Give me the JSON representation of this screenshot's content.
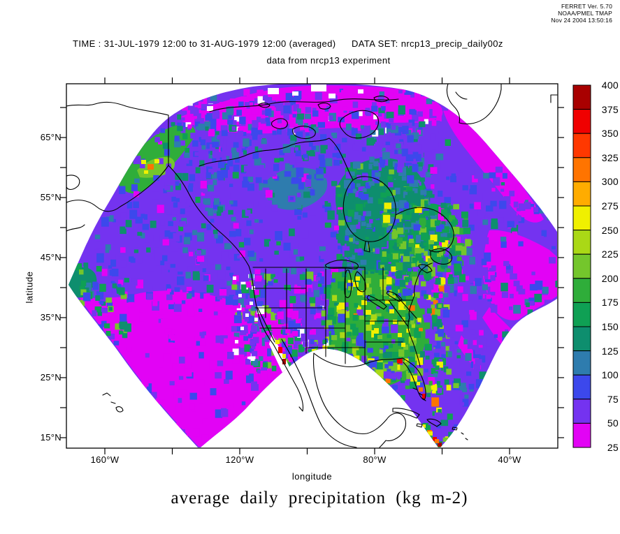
{
  "credit": {
    "line1": "FERRET Ver. 5.70",
    "line2": "NOAA/PMEL TMAP",
    "line3": "Nov 24 2004 13:50:16"
  },
  "titles": {
    "time_label": "TIME : 31-JUL-1979 12:00 to 31-AUG-1979 12:00 (averaged)",
    "dataset_label": "DATA SET: nrcp13_precip_daily00z",
    "subtitle": "data from nrcp13 experiment",
    "main_title": "average daily precipitation (kg m-2)"
  },
  "axes": {
    "x": {
      "label": "longitude",
      "tick_labels": [
        "160°W",
        "120°W",
        "80°W",
        "40°W"
      ],
      "all_ticks": [
        "160°W",
        "140°W",
        "120°W",
        "100°W",
        "80°W",
        "60°W",
        "40°W"
      ]
    },
    "y": {
      "label": "latitude",
      "tick_labels": [
        "65°N",
        "55°N",
        "45°N",
        "35°N",
        "25°N",
        "15°N"
      ],
      "minor_ticks_every_deg": 5
    }
  },
  "colorbar": {
    "labels": [
      "400",
      "375",
      "350",
      "325",
      "300",
      "275",
      "250",
      "225",
      "200",
      "175",
      "150",
      "125",
      "100",
      "75",
      "50",
      "25"
    ],
    "colors": [
      "#A80000",
      "#F00000",
      "#FF3800",
      "#FF7400",
      "#FFAC00",
      "#F0F000",
      "#AAD816",
      "#74C62C",
      "#2FAD3A",
      "#0FA054",
      "#0E8E6E",
      "#2E7CAE",
      "#3C48EC",
      "#7433F0",
      "#E203F5"
    ]
  },
  "chart_data": {
    "type": "heatmap",
    "title": "average daily precipitation (kg m-2)",
    "subtitle": "data from nrcp13 experiment",
    "time_range": "31-JUL-1979 12:00 to 31-AUG-1979 12:00 (averaged)",
    "dataset": "nrcp13_precip_daily00z",
    "xlabel": "longitude",
    "ylabel": "latitude",
    "x_ticks": [
      "160°W",
      "140°W",
      "120°W",
      "100°W",
      "80°W",
      "60°W",
      "40°W"
    ],
    "x_tick_labels_shown": [
      "160°W",
      "120°W",
      "80°W",
      "40°W"
    ],
    "y_ticks": [
      "15°N",
      "20°N",
      "25°N",
      "30°N",
      "35°N",
      "40°N",
      "45°N",
      "50°N",
      "55°N",
      "60°N",
      "65°N",
      "70°N"
    ],
    "y_tick_labels_shown": [
      "15°N",
      "25°N",
      "35°N",
      "45°N",
      "55°N",
      "65°N"
    ],
    "colorbar_levels": [
      25,
      50,
      75,
      100,
      125,
      150,
      175,
      200,
      225,
      250,
      275,
      300,
      325,
      350,
      375,
      400
    ],
    "legend_position": "right",
    "grid": false,
    "palette": {
      "magenta": "#E203F5",
      "violet": "#7433F0",
      "blue": "#3C48EC",
      "steel": "#2E7CAE",
      "teal": "#0E8E6E",
      "green": "#0FA054",
      "mgreen": "#2FAD3A",
      "lime": "#74C62C",
      "ygreen": "#AAD816",
      "yellow": "#F0F000",
      "lorange": "#FFAC00",
      "orange": "#FF7400",
      "ored": "#FF3800",
      "red": "#F00000",
      "dred": "#A80000",
      "white": "#FFFFFF",
      "coastline": "#000000",
      "frame": "#000000",
      "background": "#FFFFFF"
    },
    "pattern_notes": [
      "fan-shaped curvilinear model domain over North America; area outside domain is blank white",
      "large magenta (<50) low-precipitation region over the subtropical NE Pacific",
      "magenta band along the Arctic top edge and streaks over the western subtropical Atlantic",
      "violet-blue (50-100) background over most oceans and plains",
      "teal and green (125-200) over Hudson Bay, central Canada and Quebec/Labrador",
      "green to yellow (200-275) over the Midwest, Appalachians, southeast US and Gulf coast",
      "isolated orange-red maxima (300-400) on the Mexican west coast, Caribbean island arc and SE Alaska coast",
      "small white missing-data cells over the Rockies and Arctic islands"
    ]
  }
}
